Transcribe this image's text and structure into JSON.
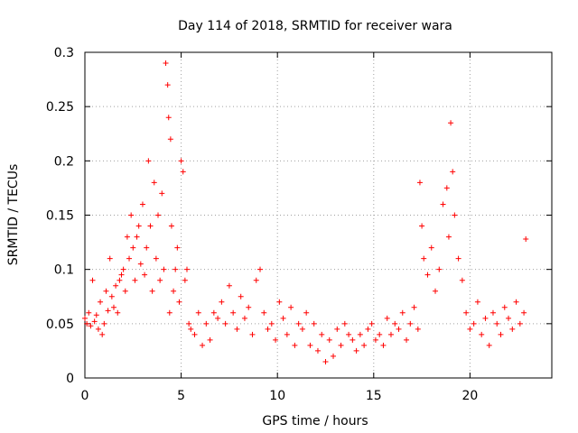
{
  "chart_data": {
    "type": "scatter",
    "title": "Day 114 of 2018, SRMTID for receiver wara",
    "xlabel": "GPS time / hours",
    "ylabel": "SRMTID / TECUs",
    "xlim": [
      0,
      24.25
    ],
    "ylim": [
      0,
      0.3
    ],
    "xticks": [
      0,
      5,
      10,
      15,
      20
    ],
    "xtick_labels": [
      "0",
      "5",
      "10",
      "15",
      "20"
    ],
    "yticks": [
      0,
      0.05,
      0.1,
      0.15,
      0.2,
      0.25,
      0.3
    ],
    "ytick_labels": [
      "0",
      "0.05",
      "0.1",
      "0.15",
      "0.2",
      "0.25",
      "0.3"
    ],
    "grid": true,
    "marker": "+",
    "series": [
      {
        "name": "SRMTID",
        "color": "#ff0000",
        "x": [
          0.0,
          0.1,
          0.2,
          0.3,
          0.4,
          0.5,
          0.6,
          0.7,
          0.8,
          0.9,
          1.0,
          1.1,
          1.2,
          1.3,
          1.4,
          1.5,
          1.6,
          1.7,
          1.8,
          1.9,
          2.0,
          2.1,
          2.2,
          2.3,
          2.4,
          2.5,
          2.6,
          2.7,
          2.8,
          2.9,
          3.0,
          3.1,
          3.2,
          3.3,
          3.4,
          3.5,
          3.6,
          3.7,
          3.8,
          3.9,
          4.0,
          4.1,
          4.2,
          4.3,
          4.35,
          4.4,
          4.45,
          4.5,
          4.6,
          4.7,
          4.8,
          4.9,
          5.0,
          5.1,
          5.2,
          5.3,
          5.4,
          5.5,
          5.7,
          5.9,
          6.1,
          6.3,
          6.5,
          6.7,
          6.9,
          7.1,
          7.3,
          7.5,
          7.7,
          7.9,
          8.1,
          8.3,
          8.5,
          8.7,
          8.9,
          9.1,
          9.3,
          9.5,
          9.7,
          9.9,
          10.1,
          10.3,
          10.5,
          10.7,
          10.9,
          11.1,
          11.3,
          11.5,
          11.7,
          11.9,
          12.1,
          12.3,
          12.5,
          12.7,
          12.9,
          13.1,
          13.3,
          13.5,
          13.7,
          13.9,
          14.1,
          14.3,
          14.5,
          14.7,
          14.9,
          15.1,
          15.3,
          15.5,
          15.7,
          15.9,
          16.1,
          16.3,
          16.5,
          16.7,
          16.9,
          17.1,
          17.3,
          17.4,
          17.5,
          17.6,
          17.8,
          18.0,
          18.2,
          18.4,
          18.6,
          18.8,
          18.9,
          19.0,
          19.1,
          19.2,
          19.4,
          19.6,
          19.8,
          20.0,
          20.2,
          20.4,
          20.6,
          20.8,
          21.0,
          21.2,
          21.4,
          21.6,
          21.8,
          22.0,
          22.2,
          22.4,
          22.6,
          22.8,
          22.9
        ],
        "y": [
          0.055,
          0.05,
          0.06,
          0.048,
          0.09,
          0.052,
          0.058,
          0.045,
          0.07,
          0.04,
          0.05,
          0.08,
          0.062,
          0.11,
          0.075,
          0.065,
          0.085,
          0.06,
          0.09,
          0.095,
          0.1,
          0.08,
          0.13,
          0.11,
          0.15,
          0.12,
          0.09,
          0.13,
          0.14,
          0.105,
          0.16,
          0.095,
          0.12,
          0.2,
          0.14,
          0.08,
          0.18,
          0.11,
          0.15,
          0.09,
          0.17,
          0.1,
          0.29,
          0.27,
          0.24,
          0.06,
          0.22,
          0.14,
          0.08,
          0.1,
          0.12,
          0.07,
          0.2,
          0.19,
          0.09,
          0.1,
          0.05,
          0.045,
          0.04,
          0.06,
          0.03,
          0.05,
          0.035,
          0.06,
          0.055,
          0.07,
          0.05,
          0.085,
          0.06,
          0.045,
          0.075,
          0.055,
          0.065,
          0.04,
          0.09,
          0.1,
          0.06,
          0.045,
          0.05,
          0.035,
          0.07,
          0.055,
          0.04,
          0.065,
          0.03,
          0.05,
          0.045,
          0.06,
          0.03,
          0.05,
          0.025,
          0.04,
          0.015,
          0.035,
          0.02,
          0.045,
          0.03,
          0.05,
          0.04,
          0.035,
          0.025,
          0.04,
          0.03,
          0.045,
          0.05,
          0.035,
          0.04,
          0.03,
          0.055,
          0.04,
          0.05,
          0.045,
          0.06,
          0.035,
          0.05,
          0.065,
          0.045,
          0.18,
          0.14,
          0.11,
          0.095,
          0.12,
          0.08,
          0.1,
          0.16,
          0.175,
          0.13,
          0.235,
          0.19,
          0.15,
          0.11,
          0.09,
          0.06,
          0.045,
          0.05,
          0.07,
          0.04,
          0.055,
          0.03,
          0.06,
          0.05,
          0.04,
          0.065,
          0.055,
          0.045,
          0.07,
          0.05,
          0.06,
          0.128
        ]
      }
    ]
  }
}
